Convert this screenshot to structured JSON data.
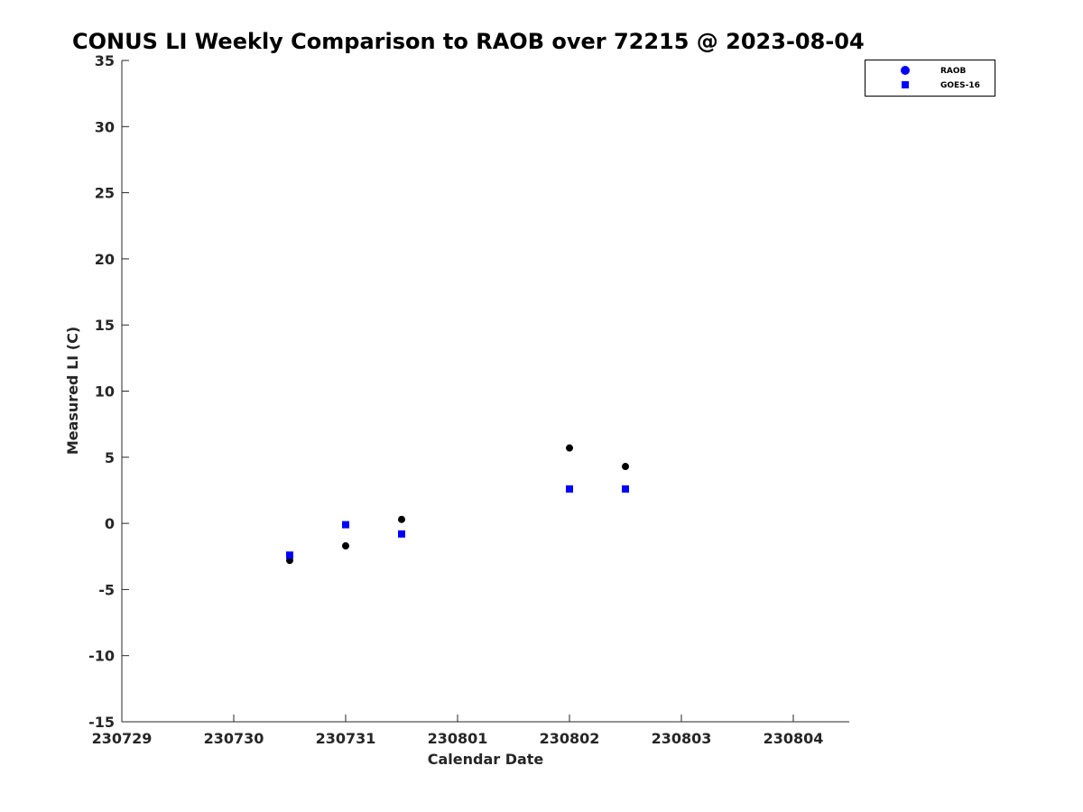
{
  "chart_data": {
    "type": "scatter",
    "title": "CONUS LI Weekly Comparison to RAOB over 72215 @ 2023-08-04",
    "xlabel": "Calendar Date",
    "ylabel": "Measured LI (C)",
    "xlim": [
      "2023-07-29",
      "2023-08-04T12:00"
    ],
    "ylim": [
      -15,
      35
    ],
    "x_ticks": [
      "230729",
      "230730",
      "230731",
      "230801",
      "230802",
      "230803",
      "230804"
    ],
    "y_ticks": [
      -15,
      -10,
      -5,
      0,
      5,
      10,
      15,
      20,
      25,
      30,
      35
    ],
    "grid": false,
    "legend_position": "top-right",
    "legend": [
      {
        "label": "RAOB",
        "marker": "circle",
        "color": "#0000ff"
      },
      {
        "label": "GOES-16",
        "marker": "square",
        "color": "#0000ff"
      }
    ],
    "series": [
      {
        "name": "RAOB",
        "color": "#000000",
        "marker": "circle",
        "points": [
          {
            "x": "2023-07-30T12:00",
            "y": -2.8
          },
          {
            "x": "2023-07-31T00:00",
            "y": -1.7
          },
          {
            "x": "2023-07-31T12:00",
            "y": 0.3
          },
          {
            "x": "2023-08-02T00:00",
            "y": 5.7
          },
          {
            "x": "2023-08-02T12:00",
            "y": 4.3
          }
        ]
      },
      {
        "name": "GOES-16",
        "color": "#0000ff",
        "marker": "square",
        "points": [
          {
            "x": "2023-07-30T12:00",
            "y": -2.4
          },
          {
            "x": "2023-07-31T00:00",
            "y": -0.1
          },
          {
            "x": "2023-07-31T12:00",
            "y": -0.8
          },
          {
            "x": "2023-08-02T00:00",
            "y": 2.6
          },
          {
            "x": "2023-08-02T12:00",
            "y": 2.6
          }
        ]
      }
    ]
  }
}
